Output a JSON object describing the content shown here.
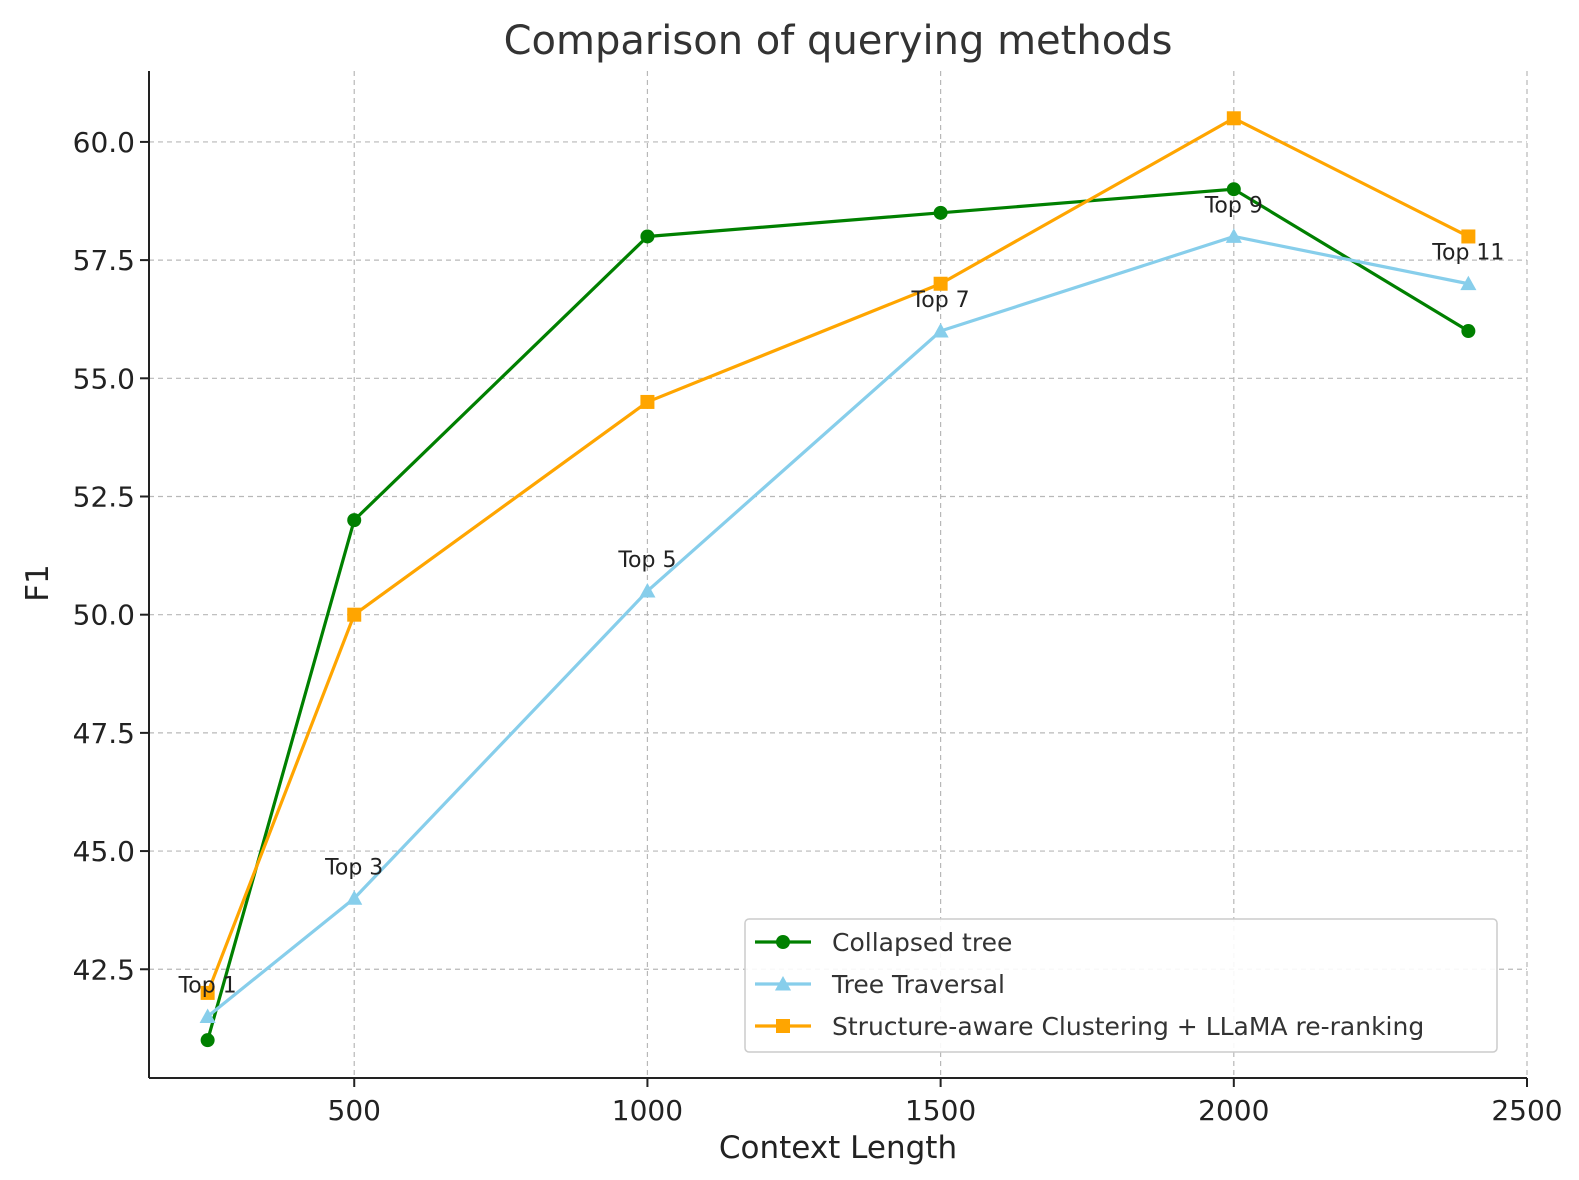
{
  "chart_data": {
    "type": "line",
    "title": "Comparison of querying methods",
    "xlabel": "Context Length",
    "ylabel": "F1",
    "xlim": [
      150,
      2500
    ],
    "ylim": [
      40.2,
      61.5
    ],
    "xticks": [
      500,
      1000,
      1500,
      2000,
      2500
    ],
    "xtick_labels": [
      "500",
      "1000",
      "1500",
      "2000",
      "2500"
    ],
    "yticks": [
      42.5,
      45.0,
      47.5,
      50.0,
      52.5,
      55.0,
      57.5,
      60.0
    ],
    "ytick_labels": [
      "42.5",
      "45.0",
      "47.5",
      "50.0",
      "52.5",
      "55.0",
      "57.5",
      "60.0"
    ],
    "grid": true,
    "legend_position": "lower-right",
    "series": [
      {
        "name": "Collapsed tree",
        "color": "#008000",
        "marker": "circle",
        "x": [
          250,
          500,
          1000,
          1500,
          2000,
          2400
        ],
        "y": [
          41.0,
          52.0,
          58.0,
          58.5,
          59.0,
          56.0
        ]
      },
      {
        "name": "Tree Traversal",
        "color": "#87CEEB",
        "marker": "triangle",
        "x": [
          250,
          500,
          1000,
          1500,
          2000,
          2400
        ],
        "y": [
          41.5,
          44.0,
          50.5,
          56.0,
          58.0,
          57.0
        ]
      },
      {
        "name": "Structure-aware Clustering + LLaMA re-ranking",
        "color": "#FFA500",
        "marker": "square",
        "x": [
          250,
          500,
          1000,
          1500,
          2000,
          2400
        ],
        "y": [
          42.0,
          50.0,
          54.5,
          57.0,
          60.5,
          58.0
        ]
      }
    ],
    "annotations": [
      {
        "text": "Top 1",
        "x": 250,
        "y": 41.5
      },
      {
        "text": "Top 3",
        "x": 500,
        "y": 44.0
      },
      {
        "text": "Top 5",
        "x": 1000,
        "y": 50.5
      },
      {
        "text": "Top 7",
        "x": 1500,
        "y": 56.0
      },
      {
        "text": "Top 9",
        "x": 2000,
        "y": 58.0
      },
      {
        "text": "Top 11",
        "x": 2400,
        "y": 57.0
      }
    ]
  }
}
